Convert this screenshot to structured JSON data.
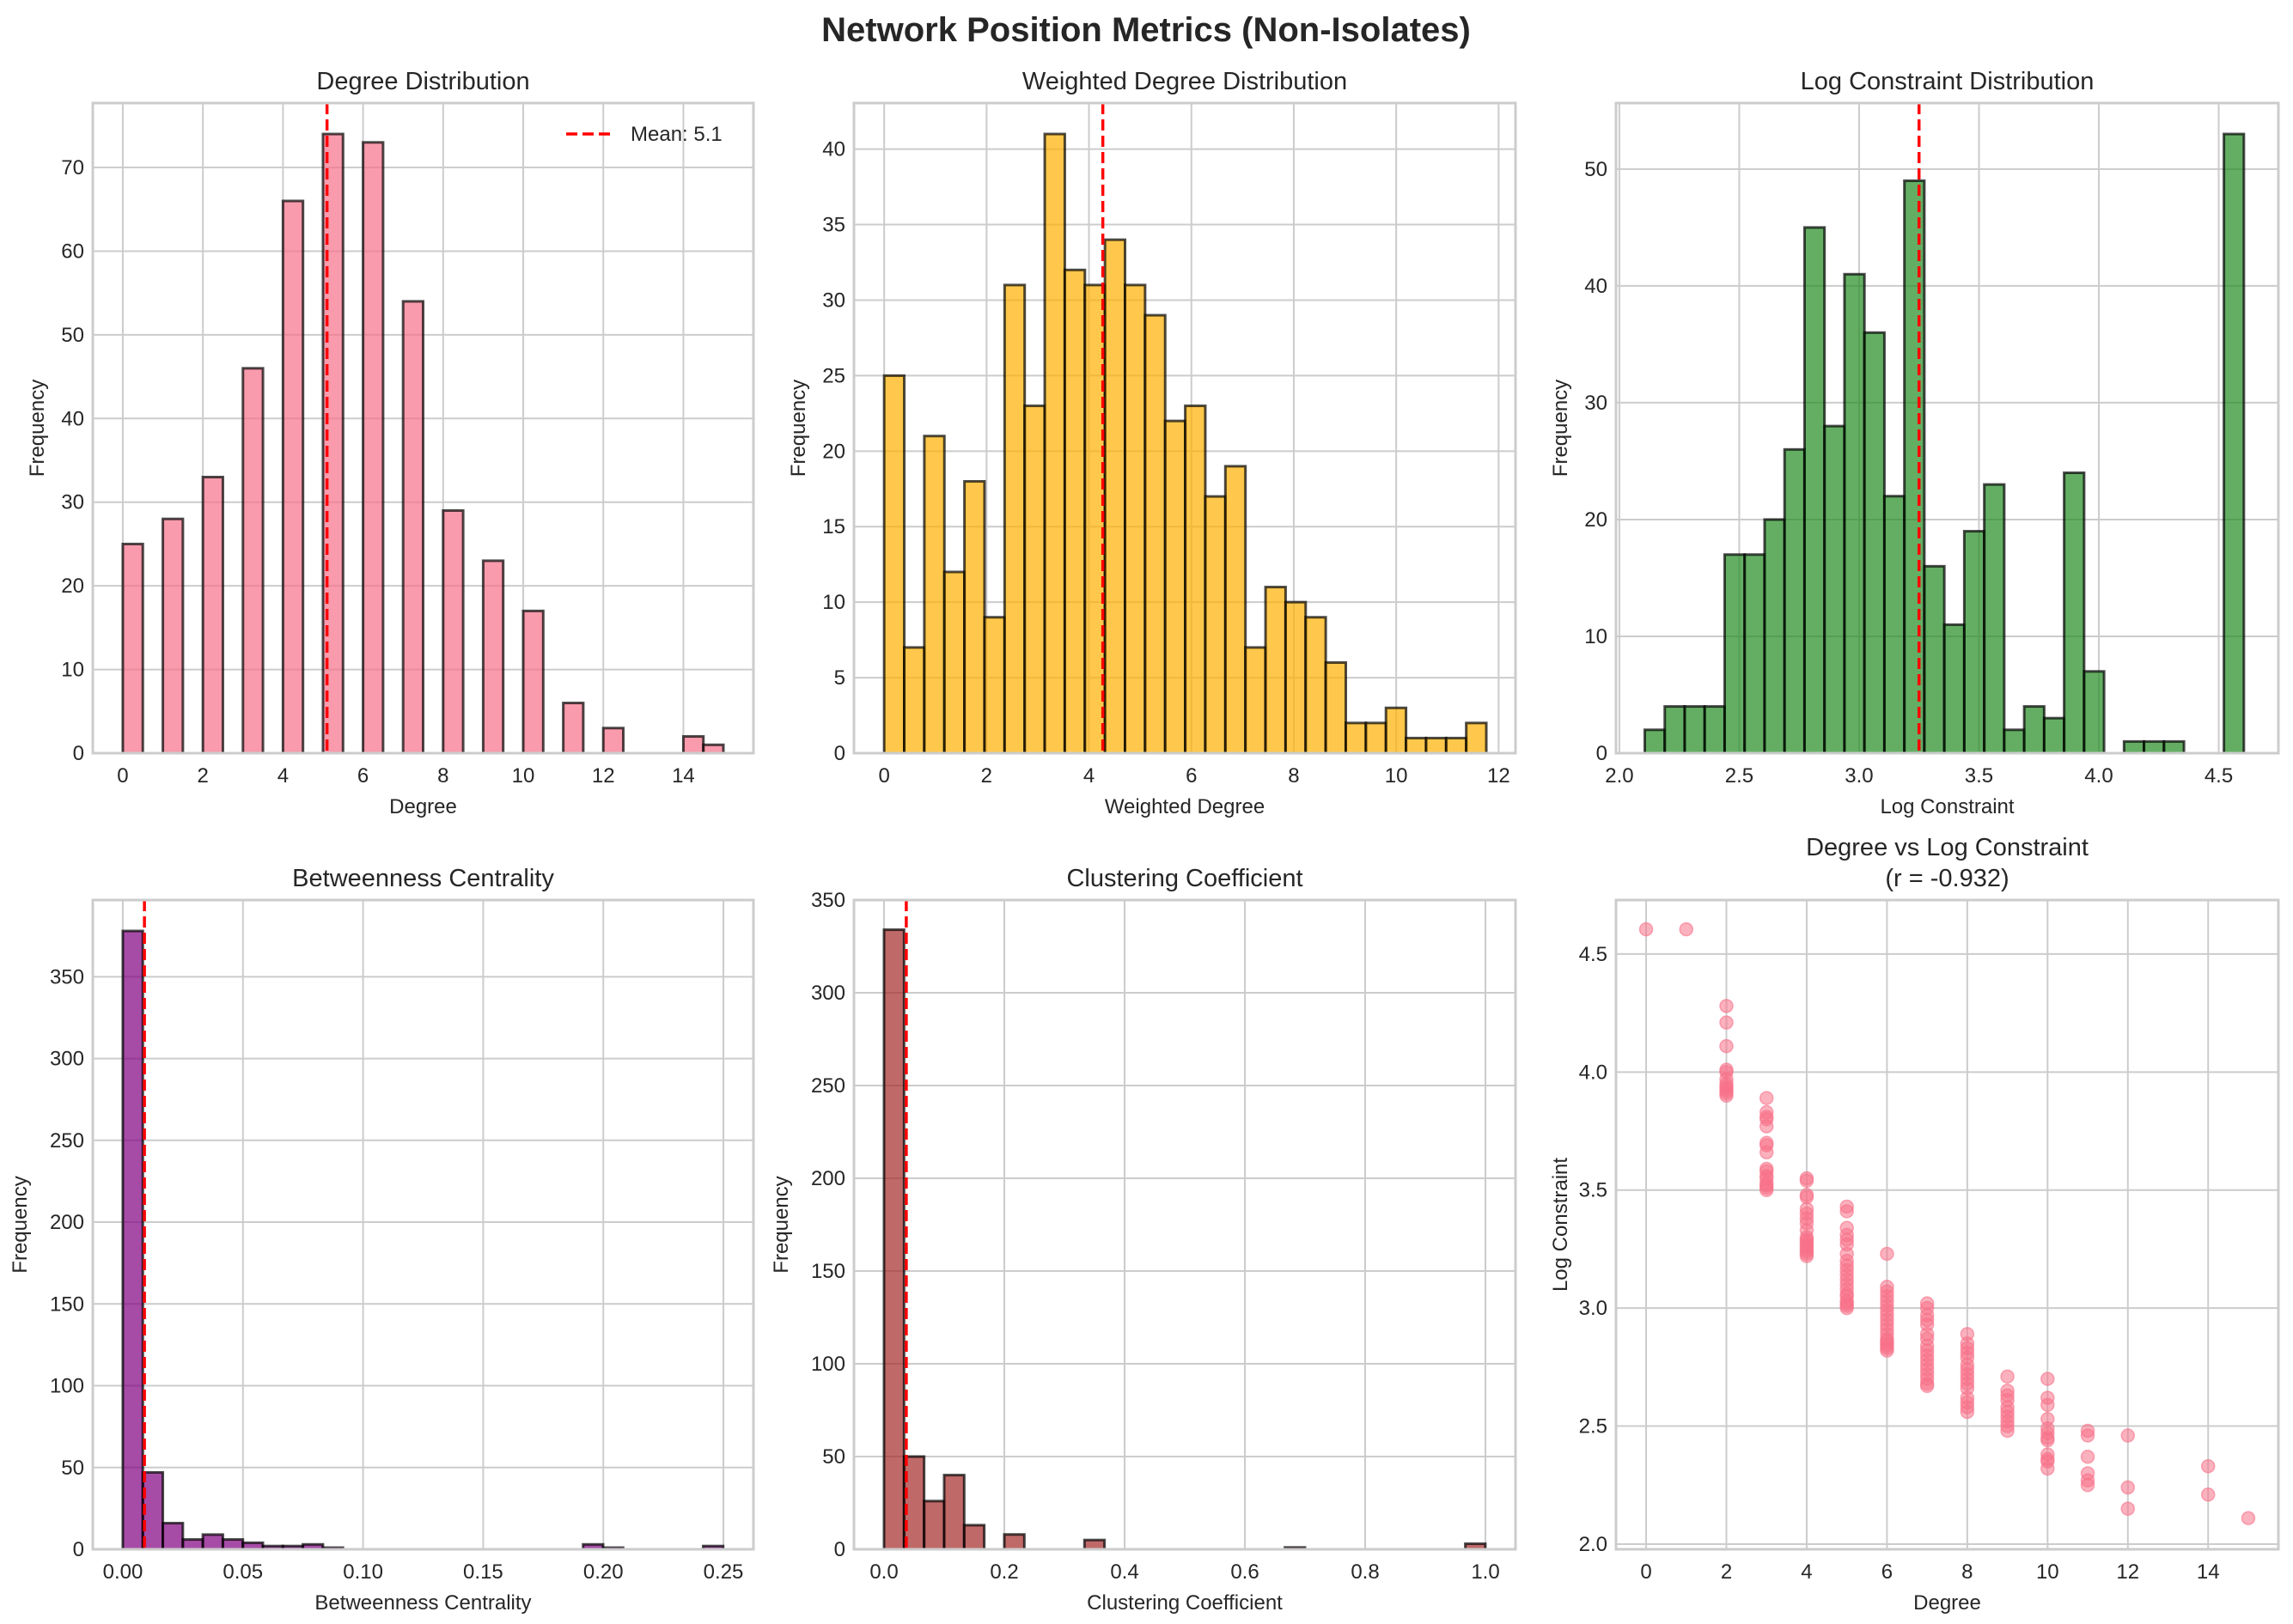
{
  "figure": {
    "suptitle": "Network Position Metrics (Non-Isolates)"
  },
  "chart_data": [
    {
      "id": "degree",
      "type": "bar",
      "subtype": "histogram",
      "title": "Degree Distribution",
      "xlabel": "Degree",
      "ylabel": "Frequency",
      "color": "#f77189",
      "bin_start": 0,
      "bin_width": 0.5,
      "values": [
        25,
        0,
        28,
        0,
        33,
        0,
        46,
        0,
        66,
        0,
        74,
        0,
        73,
        0,
        54,
        0,
        29,
        0,
        23,
        0,
        17,
        0,
        6,
        0,
        3,
        0,
        0,
        0,
        2,
        1
      ],
      "xlim": [
        -0.75,
        15.75
      ],
      "ylim": [
        0,
        77.7
      ],
      "xticks": [
        0,
        2,
        4,
        6,
        8,
        10,
        12,
        14
      ],
      "xtick_labels": [
        "0",
        "2",
        "4",
        "6",
        "8",
        "10",
        "12",
        "14"
      ],
      "yticks": [
        0,
        10,
        20,
        30,
        40,
        50,
        60,
        70
      ],
      "ytick_labels": [
        "0",
        "10",
        "20",
        "30",
        "40",
        "50",
        "60",
        "70"
      ],
      "mean_line": 5.1,
      "legend": {
        "label": "Mean: 5.1",
        "placement": "top-right"
      },
      "grid": true
    },
    {
      "id": "weighted",
      "type": "bar",
      "subtype": "histogram",
      "title": "Weighted Degree Distribution",
      "xlabel": "Weighted Degree",
      "ylabel": "Frequency",
      "color": "#ffb000",
      "bin_start": 0,
      "bin_width": 0.392,
      "values": [
        25,
        7,
        21,
        12,
        18,
        9,
        31,
        23,
        41,
        32,
        31,
        34,
        31,
        29,
        22,
        23,
        17,
        19,
        7,
        11,
        10,
        9,
        6,
        2,
        2,
        3,
        1,
        1,
        1,
        2
      ],
      "xlim": [
        -0.59,
        12.33
      ],
      "ylim": [
        0,
        43.05
      ],
      "xticks": [
        0,
        2,
        4,
        6,
        8,
        10,
        12
      ],
      "xtick_labels": [
        "0",
        "2",
        "4",
        "6",
        "8",
        "10",
        "12"
      ],
      "yticks": [
        0,
        5,
        10,
        15,
        20,
        25,
        30,
        35,
        40
      ],
      "ytick_labels": [
        "0",
        "5",
        "10",
        "15",
        "20",
        "25",
        "30",
        "35",
        "40"
      ],
      "mean_line": 4.27,
      "grid": true
    },
    {
      "id": "logconstraint",
      "type": "bar",
      "subtype": "histogram",
      "title": "Log Constraint Distribution",
      "xlabel": "Log Constraint",
      "ylabel": "Frequency",
      "color": "#228b22",
      "bin_start": 2.106,
      "bin_width": 0.0833,
      "values": [
        2,
        4,
        4,
        4,
        17,
        17,
        20,
        26,
        45,
        28,
        41,
        36,
        22,
        49,
        16,
        11,
        19,
        23,
        2,
        4,
        3,
        24,
        7,
        0,
        1,
        1,
        1,
        0,
        0,
        53
      ],
      "xlim": [
        1.986,
        4.749
      ],
      "ylim": [
        0,
        55.65
      ],
      "xticks": [
        2.0,
        2.5,
        3.0,
        3.5,
        4.0,
        4.5
      ],
      "xtick_labels": [
        "2.0",
        "2.5",
        "3.0",
        "3.5",
        "4.0",
        "4.5"
      ],
      "yticks": [
        0,
        10,
        20,
        30,
        40,
        50
      ],
      "ytick_labels": [
        "0",
        "10",
        "20",
        "30",
        "40",
        "50"
      ],
      "mean_line": 3.25,
      "grid": true
    },
    {
      "id": "betweenness",
      "type": "bar",
      "subtype": "histogram",
      "title": "Betweenness Centrality",
      "xlabel": "Betweenness Centrality",
      "ylabel": "Frequency",
      "color": "#800080",
      "bin_start": 0,
      "bin_width": 0.00833,
      "values": [
        378,
        47,
        16,
        6,
        9,
        6,
        4,
        2,
        2,
        3,
        1,
        0,
        0,
        0,
        0,
        0,
        0,
        0,
        0,
        0,
        0,
        0,
        0,
        3,
        1,
        0,
        0,
        0,
        0,
        2
      ],
      "xlim": [
        -0.0125,
        0.2625
      ],
      "ylim": [
        0,
        396.9
      ],
      "xticks": [
        0.0,
        0.05,
        0.1,
        0.15,
        0.2,
        0.25
      ],
      "xtick_labels": [
        "0.00",
        "0.05",
        "0.10",
        "0.15",
        "0.20",
        "0.25"
      ],
      "yticks": [
        0,
        50,
        100,
        150,
        200,
        250,
        300,
        350
      ],
      "ytick_labels": [
        "0",
        "50",
        "100",
        "150",
        "200",
        "250",
        "300",
        "350"
      ],
      "mean_line": 0.009,
      "grid": true
    },
    {
      "id": "clustering",
      "type": "bar",
      "subtype": "histogram",
      "title": "Clustering Coefficient",
      "xlabel": "Clustering Coefficient",
      "ylabel": "Frequency",
      "color": "#a52a2a",
      "bin_start": 0,
      "bin_width": 0.03333,
      "values": [
        334,
        50,
        26,
        40,
        13,
        0,
        8,
        0,
        0,
        0,
        5,
        0,
        0,
        0,
        0,
        0,
        0,
        0,
        0,
        0,
        1,
        0,
        0,
        0,
        0,
        0,
        0,
        0,
        0,
        3
      ],
      "xlim": [
        -0.05,
        1.05
      ],
      "ylim": [
        0,
        350
      ],
      "xticks": [
        0.0,
        0.2,
        0.4,
        0.6,
        0.8,
        1.0
      ],
      "xtick_labels": [
        "0.0",
        "0.2",
        "0.4",
        "0.6",
        "0.8",
        "1.0"
      ],
      "yticks": [
        0,
        50,
        100,
        150,
        200,
        250,
        300,
        350
      ],
      "ytick_labels": [
        "0",
        "50",
        "100",
        "150",
        "200",
        "250",
        "300",
        "350"
      ],
      "mean_line": 0.037,
      "grid": true
    },
    {
      "id": "scatter",
      "type": "scatter",
      "title": "Degree vs Log Constraint",
      "subtitle": "(r = -0.932)",
      "xlabel": "Degree",
      "ylabel": "Log Constraint",
      "color": "#f77189",
      "xlim": [
        -0.75,
        15.75
      ],
      "ylim": [
        1.978,
        4.729
      ],
      "xticks": [
        0,
        2,
        4,
        6,
        8,
        10,
        12,
        14
      ],
      "xtick_labels": [
        "0",
        "2",
        "4",
        "6",
        "8",
        "10",
        "12",
        "14"
      ],
      "yticks": [
        2.0,
        2.5,
        3.0,
        3.5,
        4.0,
        4.5
      ],
      "ytick_labels": [
        "2.0",
        "2.5",
        "3.0",
        "3.5",
        "4.0",
        "4.5"
      ],
      "grid": true,
      "points": [
        [
          0,
          4.605
        ],
        [
          1,
          4.605
        ],
        [
          2,
          4.28
        ],
        [
          2,
          4.21
        ],
        [
          2,
          4.11
        ],
        [
          2,
          4.01
        ],
        [
          2,
          4.0
        ],
        [
          2,
          3.97
        ],
        [
          2,
          3.95
        ],
        [
          2,
          3.94
        ],
        [
          2,
          3.93
        ],
        [
          2,
          3.92
        ],
        [
          2,
          3.91
        ],
        [
          2,
          3.9
        ],
        [
          3,
          3.89
        ],
        [
          3,
          3.83
        ],
        [
          3,
          3.81
        ],
        [
          3,
          3.8
        ],
        [
          3,
          3.77
        ],
        [
          3,
          3.7
        ],
        [
          3,
          3.69
        ],
        [
          3,
          3.66
        ],
        [
          3,
          3.59
        ],
        [
          3,
          3.58
        ],
        [
          3,
          3.56
        ],
        [
          3,
          3.55
        ],
        [
          3,
          3.53
        ],
        [
          3,
          3.52
        ],
        [
          3,
          3.51
        ],
        [
          3,
          3.5
        ],
        [
          4,
          3.55
        ],
        [
          4,
          3.54
        ],
        [
          4,
          3.48
        ],
        [
          4,
          3.47
        ],
        [
          4,
          3.42
        ],
        [
          4,
          3.4
        ],
        [
          4,
          3.38
        ],
        [
          4,
          3.36
        ],
        [
          4,
          3.33
        ],
        [
          4,
          3.3
        ],
        [
          4,
          3.29
        ],
        [
          4,
          3.28
        ],
        [
          4,
          3.27
        ],
        [
          4,
          3.26
        ],
        [
          4,
          3.25
        ],
        [
          4,
          3.24
        ],
        [
          4,
          3.23
        ],
        [
          4,
          3.22
        ],
        [
          5,
          3.43
        ],
        [
          5,
          3.41
        ],
        [
          5,
          3.34
        ],
        [
          5,
          3.31
        ],
        [
          5,
          3.29
        ],
        [
          5,
          3.27
        ],
        [
          5,
          3.23
        ],
        [
          5,
          3.2
        ],
        [
          5,
          3.18
        ],
        [
          5,
          3.16
        ],
        [
          5,
          3.14
        ],
        [
          5,
          3.12
        ],
        [
          5,
          3.1
        ],
        [
          5,
          3.08
        ],
        [
          5,
          3.06
        ],
        [
          5,
          3.05
        ],
        [
          5,
          3.03
        ],
        [
          5,
          3.02
        ],
        [
          5,
          3.01
        ],
        [
          5,
          3.0
        ],
        [
          6,
          3.23
        ],
        [
          6,
          3.09
        ],
        [
          6,
          3.07
        ],
        [
          6,
          3.05
        ],
        [
          6,
          3.03
        ],
        [
          6,
          3.01
        ],
        [
          6,
          2.99
        ],
        [
          6,
          2.97
        ],
        [
          6,
          2.95
        ],
        [
          6,
          2.93
        ],
        [
          6,
          2.91
        ],
        [
          6,
          2.89
        ],
        [
          6,
          2.87
        ],
        [
          6,
          2.86
        ],
        [
          6,
          2.85
        ],
        [
          6,
          2.84
        ],
        [
          6,
          2.83
        ],
        [
          6,
          2.82
        ],
        [
          7,
          3.02
        ],
        [
          7,
          3.0
        ],
        [
          7,
          2.97
        ],
        [
          7,
          2.95
        ],
        [
          7,
          2.93
        ],
        [
          7,
          2.89
        ],
        [
          7,
          2.87
        ],
        [
          7,
          2.84
        ],
        [
          7,
          2.82
        ],
        [
          7,
          2.8
        ],
        [
          7,
          2.78
        ],
        [
          7,
          2.76
        ],
        [
          7,
          2.74
        ],
        [
          7,
          2.72
        ],
        [
          7,
          2.7
        ],
        [
          7,
          2.68
        ],
        [
          7,
          2.67
        ],
        [
          8,
          2.89
        ],
        [
          8,
          2.85
        ],
        [
          8,
          2.83
        ],
        [
          8,
          2.81
        ],
        [
          8,
          2.79
        ],
        [
          8,
          2.76
        ],
        [
          8,
          2.74
        ],
        [
          8,
          2.72
        ],
        [
          8,
          2.7
        ],
        [
          8,
          2.68
        ],
        [
          8,
          2.66
        ],
        [
          8,
          2.62
        ],
        [
          8,
          2.6
        ],
        [
          8,
          2.58
        ],
        [
          8,
          2.56
        ],
        [
          9,
          2.71
        ],
        [
          9,
          2.65
        ],
        [
          9,
          2.63
        ],
        [
          9,
          2.61
        ],
        [
          9,
          2.58
        ],
        [
          9,
          2.56
        ],
        [
          9,
          2.54
        ],
        [
          9,
          2.52
        ],
        [
          9,
          2.5
        ],
        [
          9,
          2.48
        ],
        [
          10,
          2.7
        ],
        [
          10,
          2.62
        ],
        [
          10,
          2.59
        ],
        [
          10,
          2.53
        ],
        [
          10,
          2.49
        ],
        [
          10,
          2.47
        ],
        [
          10,
          2.45
        ],
        [
          10,
          2.44
        ],
        [
          10,
          2.38
        ],
        [
          10,
          2.36
        ],
        [
          10,
          2.35
        ],
        [
          10,
          2.32
        ],
        [
          11,
          2.48
        ],
        [
          11,
          2.46
        ],
        [
          11,
          2.37
        ],
        [
          11,
          2.3
        ],
        [
          11,
          2.27
        ],
        [
          11,
          2.25
        ],
        [
          12,
          2.46
        ],
        [
          12,
          2.24
        ],
        [
          12,
          2.15
        ],
        [
          14,
          2.33
        ],
        [
          14,
          2.21
        ],
        [
          15,
          2.11
        ]
      ]
    }
  ]
}
